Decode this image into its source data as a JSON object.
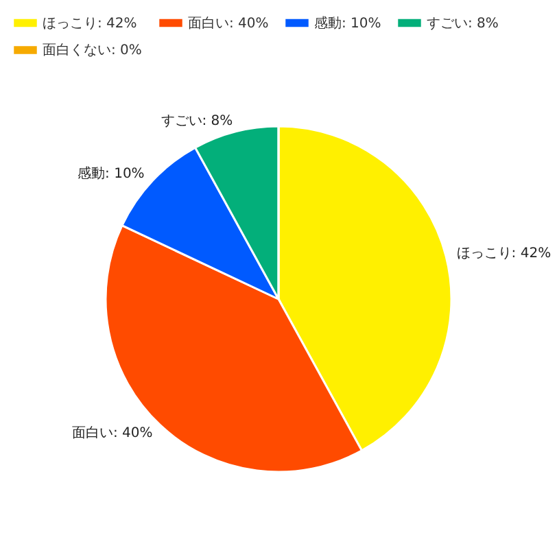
{
  "chart_data": {
    "type": "pie",
    "categories": [
      "ほっこり: 42%",
      "面白い: 40%",
      "感動: 10%",
      "すごい: 8%",
      "面白くない: 0%"
    ],
    "values": [
      42,
      40,
      10,
      8,
      0
    ],
    "colors": [
      "#fff000",
      "#ff4b00",
      "#005aff",
      "#03af7a",
      "#f6aa00"
    ],
    "legend": "top left"
  }
}
